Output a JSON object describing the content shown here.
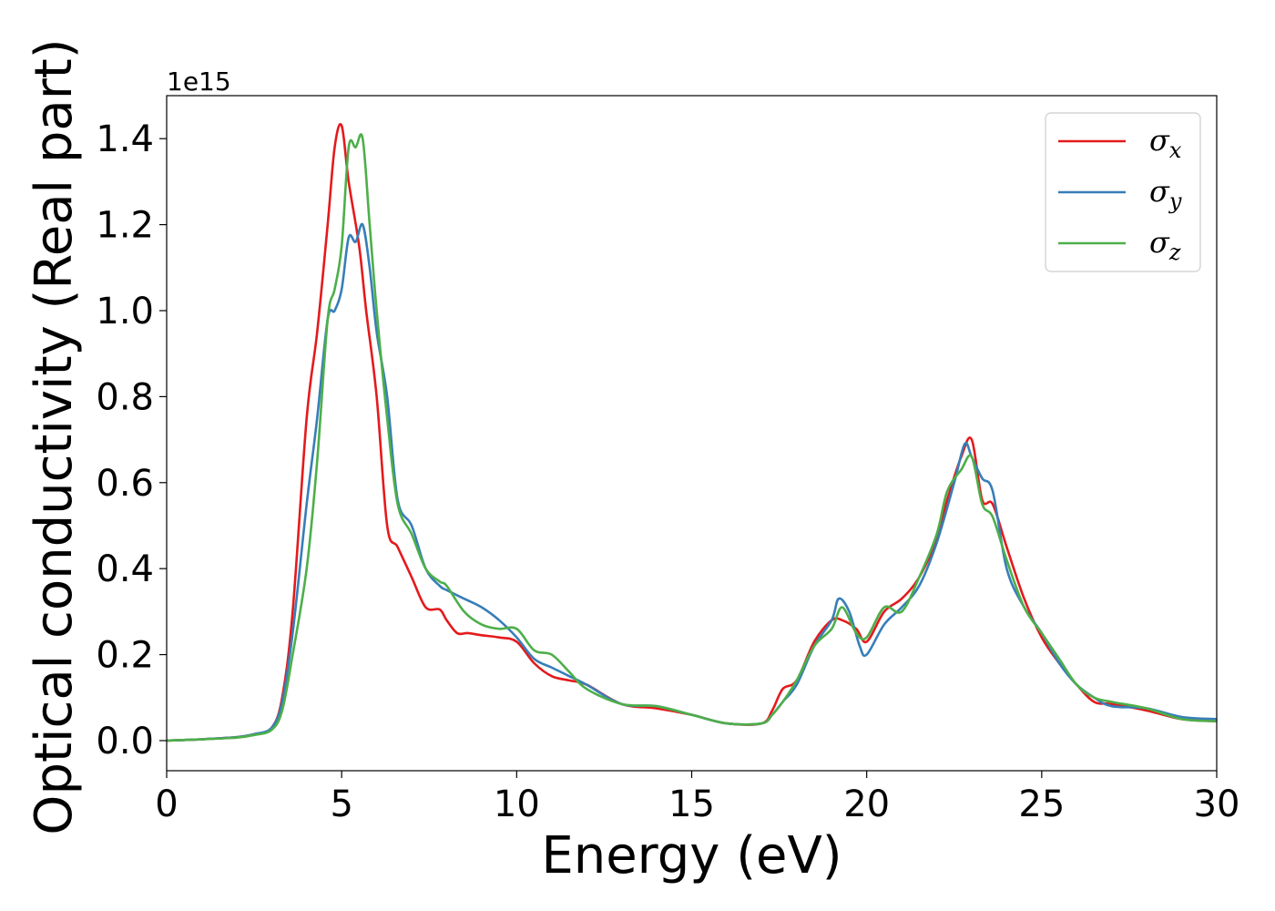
{
  "chart_data": {
    "type": "line",
    "xlabel": "Energy (eV)",
    "ylabel": "Optical conductivity (Real part)",
    "y_offset_text": "1e15",
    "xlim": [
      0,
      30
    ],
    "ylim": [
      -0.07,
      1.5
    ],
    "xticks": [
      0,
      5,
      10,
      15,
      20,
      25,
      30
    ],
    "yticks": [
      0.0,
      0.2,
      0.4,
      0.6,
      0.8,
      1.0,
      1.2,
      1.4
    ],
    "xtick_labels": [
      "0",
      "5",
      "10",
      "15",
      "20",
      "25",
      "30"
    ],
    "ytick_labels": [
      "0.0",
      "0.2",
      "0.4",
      "0.6",
      "0.8",
      "1.0",
      "1.2",
      "1.4"
    ],
    "grid": false,
    "legend_position": "top-right",
    "series": [
      {
        "name": "σx",
        "symbol": "σ",
        "subscript": "x",
        "color": "#e41a1c",
        "x": [
          0,
          1,
          2,
          2.5,
          3,
          3.3,
          3.6,
          4.0,
          4.3,
          4.6,
          4.8,
          5.0,
          5.2,
          5.5,
          5.7,
          6.0,
          6.3,
          6.6,
          7.0,
          7.4,
          7.8,
          8.0,
          8.3,
          8.6,
          9.0,
          9.5,
          10.0,
          10.5,
          11.0,
          11.5,
          12.0,
          13.0,
          14.0,
          15.0,
          16.0,
          17.0,
          17.3,
          17.6,
          18.0,
          18.5,
          19.0,
          19.3,
          19.7,
          20.0,
          20.5,
          21.0,
          21.5,
          22.0,
          22.3,
          22.7,
          23.0,
          23.3,
          23.6,
          24.0,
          24.5,
          25.0,
          25.5,
          26.0,
          26.5,
          27.0,
          28.0,
          29.0,
          30.0
        ],
        "y": [
          0.0,
          0.003,
          0.008,
          0.015,
          0.03,
          0.1,
          0.3,
          0.75,
          0.95,
          1.2,
          1.38,
          1.43,
          1.3,
          1.15,
          1.0,
          0.8,
          0.5,
          0.45,
          0.38,
          0.31,
          0.305,
          0.28,
          0.25,
          0.25,
          0.245,
          0.24,
          0.23,
          0.18,
          0.15,
          0.14,
          0.13,
          0.085,
          0.075,
          0.06,
          0.04,
          0.04,
          0.07,
          0.12,
          0.14,
          0.23,
          0.28,
          0.28,
          0.26,
          0.23,
          0.3,
          0.33,
          0.38,
          0.47,
          0.56,
          0.66,
          0.7,
          0.56,
          0.55,
          0.45,
          0.33,
          0.24,
          0.18,
          0.13,
          0.09,
          0.085,
          0.07,
          0.05,
          0.045
        ]
      },
      {
        "name": "σy",
        "symbol": "σ",
        "subscript": "y",
        "color": "#377eb8",
        "x": [
          0,
          1,
          2,
          2.5,
          3,
          3.3,
          3.6,
          4.0,
          4.3,
          4.6,
          4.8,
          5.0,
          5.2,
          5.4,
          5.6,
          5.8,
          6.0,
          6.3,
          6.6,
          7.0,
          7.4,
          7.8,
          8.0,
          8.5,
          9.0,
          9.5,
          10.0,
          10.5,
          11.0,
          11.5,
          12.0,
          13.0,
          14.0,
          15.0,
          16.0,
          17.0,
          17.3,
          17.6,
          18.0,
          18.5,
          19.0,
          19.2,
          19.5,
          19.8,
          20.0,
          20.5,
          21.0,
          21.5,
          22.0,
          22.5,
          22.8,
          23.0,
          23.3,
          23.6,
          24.0,
          24.5,
          25.0,
          25.5,
          26.0,
          26.5,
          27.0,
          28.0,
          29.0,
          30.0
        ],
        "y": [
          0.0,
          0.003,
          0.008,
          0.015,
          0.03,
          0.09,
          0.25,
          0.55,
          0.75,
          0.98,
          1.0,
          1.05,
          1.17,
          1.16,
          1.2,
          1.1,
          0.95,
          0.8,
          0.56,
          0.5,
          0.4,
          0.36,
          0.35,
          0.33,
          0.31,
          0.28,
          0.24,
          0.19,
          0.17,
          0.15,
          0.13,
          0.085,
          0.08,
          0.06,
          0.04,
          0.04,
          0.06,
          0.09,
          0.13,
          0.22,
          0.28,
          0.33,
          0.3,
          0.22,
          0.2,
          0.27,
          0.31,
          0.36,
          0.46,
          0.6,
          0.69,
          0.66,
          0.61,
          0.58,
          0.4,
          0.31,
          0.25,
          0.18,
          0.13,
          0.1,
          0.08,
          0.075,
          0.055,
          0.05
        ]
      },
      {
        "name": "σz",
        "symbol": "σ",
        "subscript": "z",
        "color": "#4daf4a",
        "x": [
          0,
          1,
          2,
          2.5,
          3,
          3.3,
          3.6,
          4.0,
          4.3,
          4.6,
          4.8,
          5.0,
          5.2,
          5.4,
          5.6,
          5.8,
          6.0,
          6.3,
          6.6,
          7.0,
          7.4,
          7.8,
          8.0,
          8.5,
          9.0,
          9.5,
          10.0,
          10.5,
          11.0,
          11.5,
          12.0,
          13.0,
          14.0,
          15.0,
          16.0,
          17.0,
          17.3,
          17.6,
          18.0,
          18.5,
          19.0,
          19.3,
          19.7,
          20.0,
          20.5,
          21.0,
          21.5,
          22.0,
          22.3,
          22.7,
          23.0,
          23.3,
          23.6,
          24.0,
          24.5,
          25.0,
          25.5,
          26.0,
          26.5,
          27.0,
          28.0,
          29.0,
          30.0
        ],
        "y": [
          0.0,
          0.003,
          0.007,
          0.013,
          0.025,
          0.07,
          0.2,
          0.4,
          0.65,
          0.98,
          1.05,
          1.15,
          1.38,
          1.38,
          1.4,
          1.2,
          1.0,
          0.75,
          0.55,
          0.48,
          0.4,
          0.37,
          0.36,
          0.3,
          0.27,
          0.26,
          0.26,
          0.21,
          0.2,
          0.16,
          0.12,
          0.085,
          0.08,
          0.06,
          0.04,
          0.04,
          0.06,
          0.09,
          0.14,
          0.22,
          0.26,
          0.31,
          0.25,
          0.24,
          0.31,
          0.3,
          0.38,
          0.48,
          0.58,
          0.63,
          0.66,
          0.55,
          0.52,
          0.42,
          0.31,
          0.25,
          0.19,
          0.13,
          0.1,
          0.09,
          0.075,
          0.05,
          0.045
        ]
      }
    ]
  }
}
